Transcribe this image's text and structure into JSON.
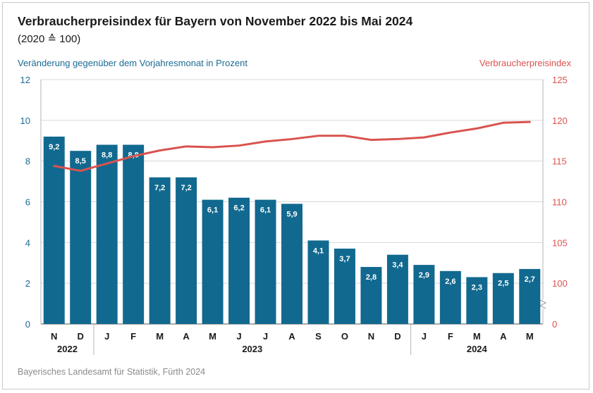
{
  "title": "Verbraucherpreisindex für Bayern von November 2022 bis Mai 2024",
  "subtitle": "(2020 ≙ 100)",
  "left_axis_label": "Veränderung gegenüber dem Vorjahresmonat in Prozent",
  "right_axis_label": "Verbraucherpreisindex",
  "source": "Bayerisches Landesamt für Statistik, Fürth 2024",
  "colors": {
    "bar": "#11698f",
    "line": "#d9534f",
    "left_axis": "#1b6a93",
    "right_axis": "#d9534f",
    "grid": "#d7d7d7"
  },
  "chart_data": {
    "type": "bar",
    "title": "Verbraucherpreisindex für Bayern von November 2022 bis Mai 2024",
    "categories": [
      "N",
      "D",
      "J",
      "F",
      "M",
      "A",
      "M",
      "J",
      "J",
      "A",
      "S",
      "O",
      "N",
      "D",
      "J",
      "F",
      "M",
      "A",
      "M"
    ],
    "years": [
      {
        "label": "2022",
        "from": 0,
        "to": 1
      },
      {
        "label": "2023",
        "from": 2,
        "to": 13
      },
      {
        "label": "2024",
        "from": 14,
        "to": 18
      }
    ],
    "series": [
      {
        "name": "Veränderung gegenüber dem Vorjahresmonat in Prozent",
        "type": "bar",
        "axis": "left",
        "values": [
          9.2,
          8.5,
          8.8,
          8.8,
          7.2,
          7.2,
          6.1,
          6.2,
          6.1,
          5.9,
          4.1,
          3.7,
          2.8,
          3.4,
          2.9,
          2.6,
          2.3,
          2.5,
          2.7
        ],
        "labels": [
          "9,2",
          "8,5",
          "8,8",
          "8,8",
          "7,2",
          "7,2",
          "6,1",
          "6,2",
          "6,1",
          "5,9",
          "4,1",
          "3,7",
          "2,8",
          "3,4",
          "2,9",
          "2,6",
          "2,3",
          "2,5",
          "2,7"
        ]
      },
      {
        "name": "Verbraucherpreisindex",
        "type": "line",
        "axis": "right",
        "values": [
          114.4,
          113.8,
          114.7,
          115.6,
          116.3,
          116.8,
          116.7,
          116.9,
          117.4,
          117.7,
          118.1,
          118.1,
          117.6,
          117.7,
          117.9,
          118.5,
          119.0,
          119.7,
          119.8
        ]
      }
    ],
    "left_axis": {
      "min": 0,
      "max": 12,
      "ticks": [
        "0",
        "2",
        "4",
        "6",
        "8",
        "10",
        "12"
      ]
    },
    "right_axis": {
      "min": 95,
      "max": 125,
      "ticks": [
        "0",
        "100",
        "105",
        "110",
        "115",
        "120",
        "125"
      ],
      "broken": true
    },
    "grid": true
  }
}
